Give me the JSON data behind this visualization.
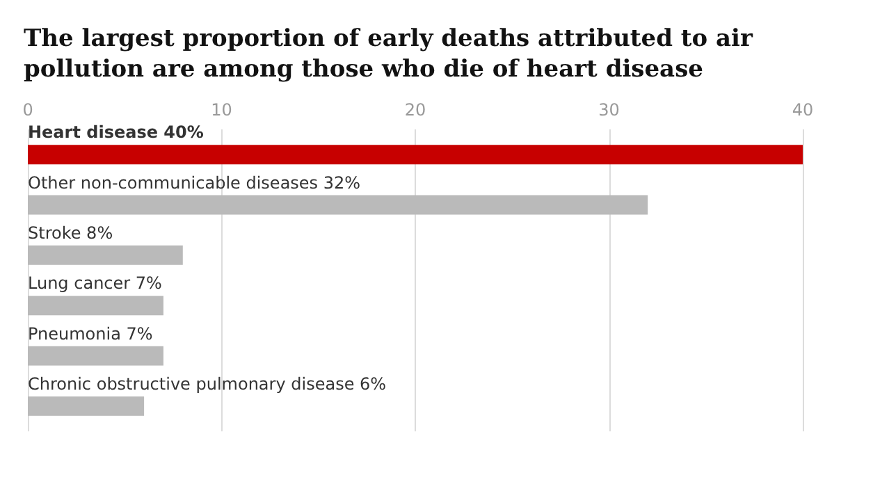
{
  "chart_data": {
    "type": "bar",
    "orientation": "horizontal",
    "title": "The largest proportion of early deaths attributed to air pollution are among those who die of heart disease",
    "categories": [
      "Heart disease",
      "Other non-communicable diseases",
      "Stroke",
      "Lung cancer",
      "Pneumonia",
      "Chronic obstructive pulmonary disease"
    ],
    "values": [
      40,
      32,
      8,
      7,
      7,
      6
    ],
    "value_labels": [
      "40%",
      "32%",
      "8%",
      "7%",
      "7%",
      "6%"
    ],
    "colors": [
      "#c70000",
      "#bababa",
      "#bababa",
      "#bababa",
      "#bababa",
      "#bababa"
    ],
    "xlim": [
      0,
      40
    ],
    "xticks": [
      0,
      10,
      20,
      30,
      40
    ],
    "grid": "x"
  }
}
